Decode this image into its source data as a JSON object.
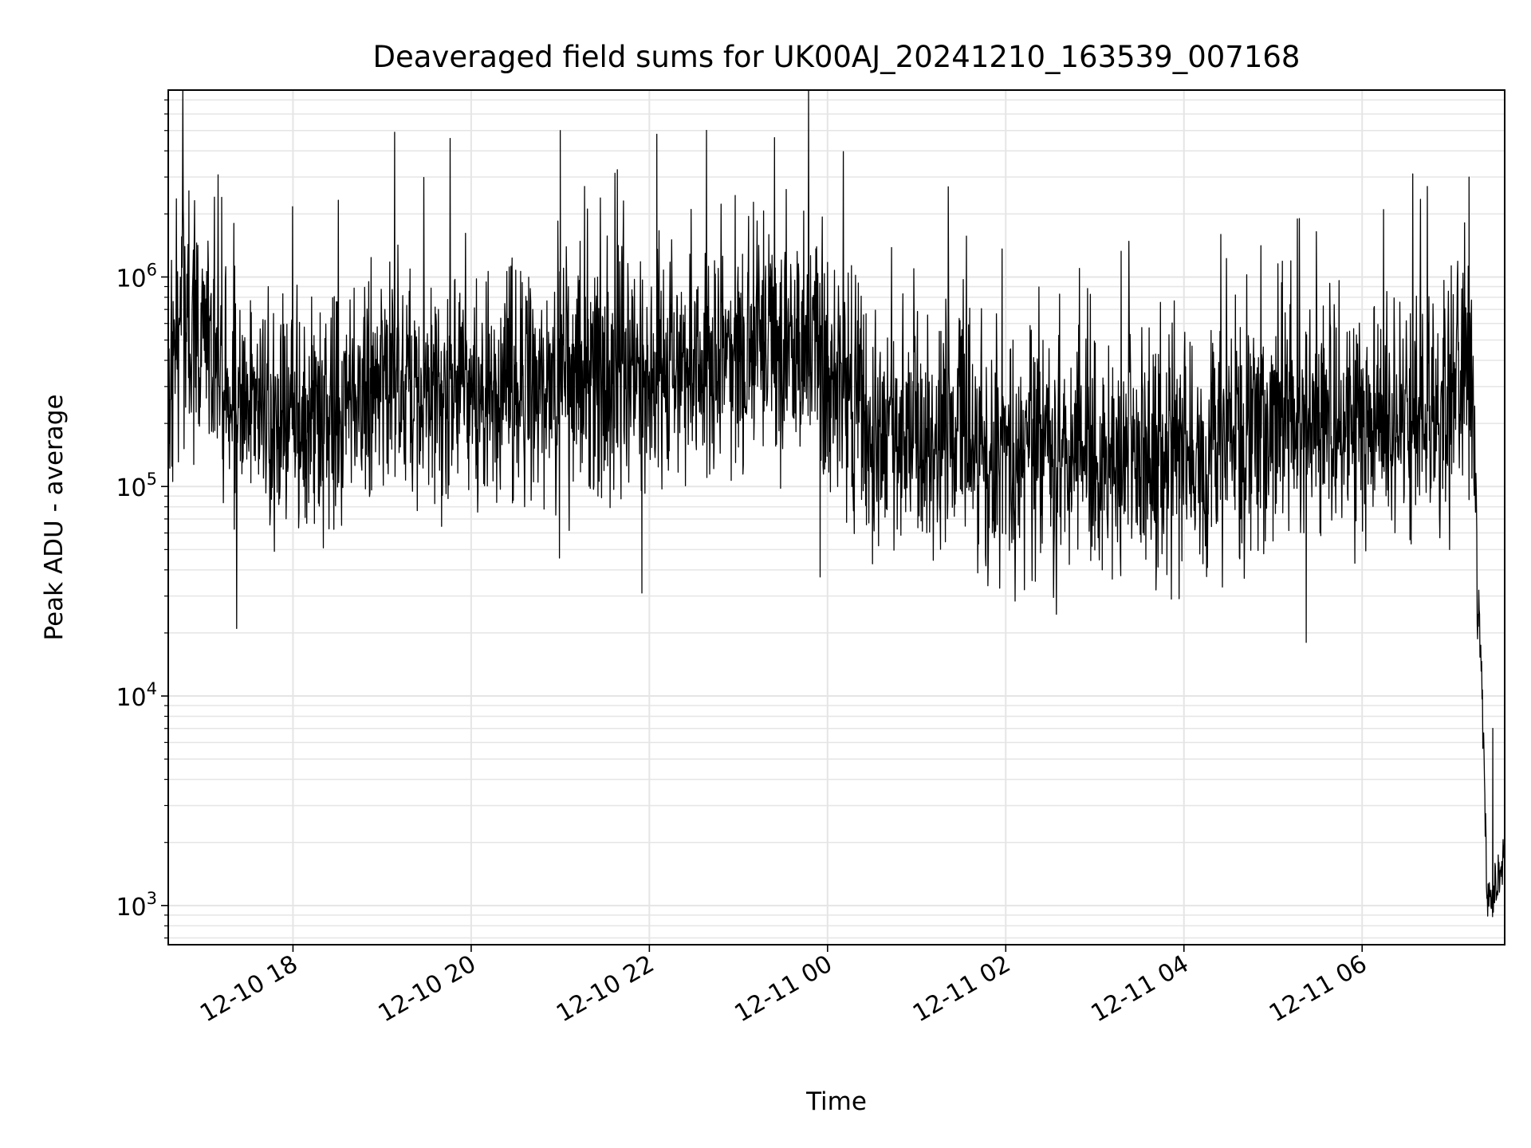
{
  "chart_data": {
    "type": "line",
    "title": "Deaveraged field sums for UK00AJ_20241210_163539_007168",
    "xlabel": "Time",
    "ylabel": "Peak ADU - average",
    "yscale": "log",
    "ylim": [
      650,
      7800000
    ],
    "xlim": [
      "2024-12-10 16:36",
      "2024-12-11 07:36"
    ],
    "grid": true,
    "line_color": "#000000",
    "grid_color": "#e5e5e5",
    "x_ticks": [
      {
        "value": "2024-12-10 18:00",
        "label": "12-10 18"
      },
      {
        "value": "2024-12-10 20:00",
        "label": "12-10 20"
      },
      {
        "value": "2024-12-10 22:00",
        "label": "12-10 22"
      },
      {
        "value": "2024-12-11 00:00",
        "label": "12-11 00"
      },
      {
        "value": "2024-12-11 02:00",
        "label": "12-11 02"
      },
      {
        "value": "2024-12-11 04:00",
        "label": "12-11 04"
      },
      {
        "value": "2024-12-11 06:00",
        "label": "12-11 06"
      }
    ],
    "y_ticks": [
      {
        "value": 1000,
        "base": "10",
        "exp": "3"
      },
      {
        "value": 10000,
        "base": "10",
        "exp": "4"
      },
      {
        "value": 100000,
        "base": "10",
        "exp": "5"
      },
      {
        "value": 1000000,
        "base": "10",
        "exp": "6"
      }
    ],
    "series": [
      {
        "x": [
          "2024-12-10 16:36",
          "2024-12-10 16:45",
          "2024-12-10 17:00",
          "2024-12-10 17:15",
          "2024-12-10 17:30",
          "2024-12-10 18:00",
          "2024-12-10 18:30",
          "2024-12-10 19:00",
          "2024-12-10 19:30",
          "2024-12-10 20:00",
          "2024-12-10 20:30",
          "2024-12-10 21:00",
          "2024-12-10 21:30",
          "2024-12-10 22:00",
          "2024-12-10 22:30",
          "2024-12-10 23:00",
          "2024-12-10 23:30",
          "2024-12-11 00:00",
          "2024-12-11 00:15",
          "2024-12-11 00:30",
          "2024-12-11 01:00",
          "2024-12-11 01:30",
          "2024-12-11 02:00",
          "2024-12-11 02:30",
          "2024-12-11 03:00",
          "2024-12-11 03:30",
          "2024-12-11 04:00",
          "2024-12-11 04:30",
          "2024-12-11 05:00",
          "2024-12-11 05:30",
          "2024-12-11 06:00",
          "2024-12-11 06:30",
          "2024-12-11 07:00",
          "2024-12-11 07:10",
          "2024-12-11 07:15",
          "2024-12-11 07:18",
          "2024-12-11 07:21",
          "2024-12-11 07:24",
          "2024-12-11 07:27",
          "2024-12-11 07:30",
          "2024-12-11 07:33",
          "2024-12-11 07:36"
        ],
        "y": [
          350000,
          700000,
          550000,
          280000,
          220000,
          200000,
          230000,
          300000,
          280000,
          300000,
          280000,
          320000,
          350000,
          330000,
          380000,
          450000,
          500000,
          380000,
          250000,
          170000,
          180000,
          180000,
          150000,
          140000,
          130000,
          140000,
          140000,
          150000,
          170000,
          200000,
          210000,
          220000,
          250000,
          400000,
          200000,
          30000,
          9000,
          1200,
          1100,
          1400,
          1500,
          1700
        ]
      }
    ],
    "annotations": [
      {
        "x": "2024-12-10 17:12",
        "y": 2400000
      },
      {
        "x": "2024-12-10 21:00",
        "y": 5000000
      },
      {
        "x": "2024-12-10 22:05",
        "y": 4800000
      },
      {
        "x": "2024-12-11 07:12",
        "y": 3000000
      },
      {
        "x": "2024-12-10 21:55",
        "y": 31000
      },
      {
        "x": "2024-12-10 23:55",
        "y": 37000
      },
      {
        "x": "2024-12-11 03:05",
        "y": 40000
      },
      {
        "x": "2024-12-11 07:28",
        "y": 7000
      }
    ]
  }
}
